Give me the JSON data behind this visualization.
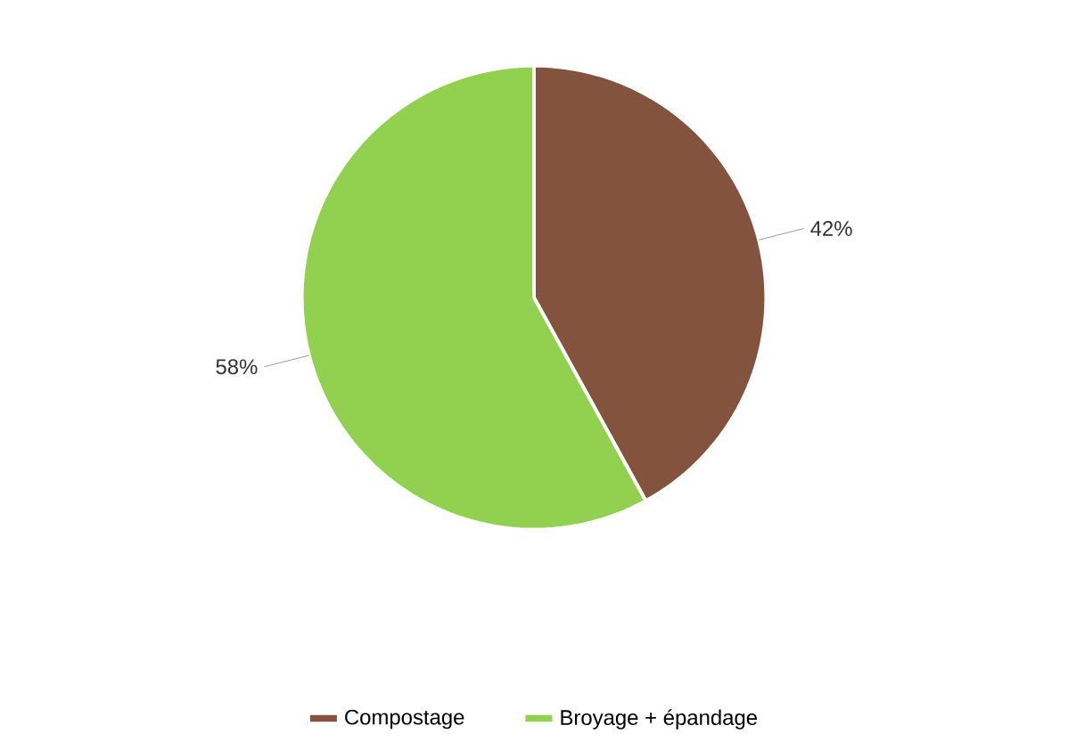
{
  "chart_data": {
    "type": "pie",
    "categories": [
      "Compostage",
      "Broyage + épandage"
    ],
    "values": [
      42,
      58
    ],
    "value_labels": [
      "42%",
      "58%"
    ],
    "colors": [
      "#84533e",
      "#92d050"
    ],
    "legend": "bottom"
  }
}
